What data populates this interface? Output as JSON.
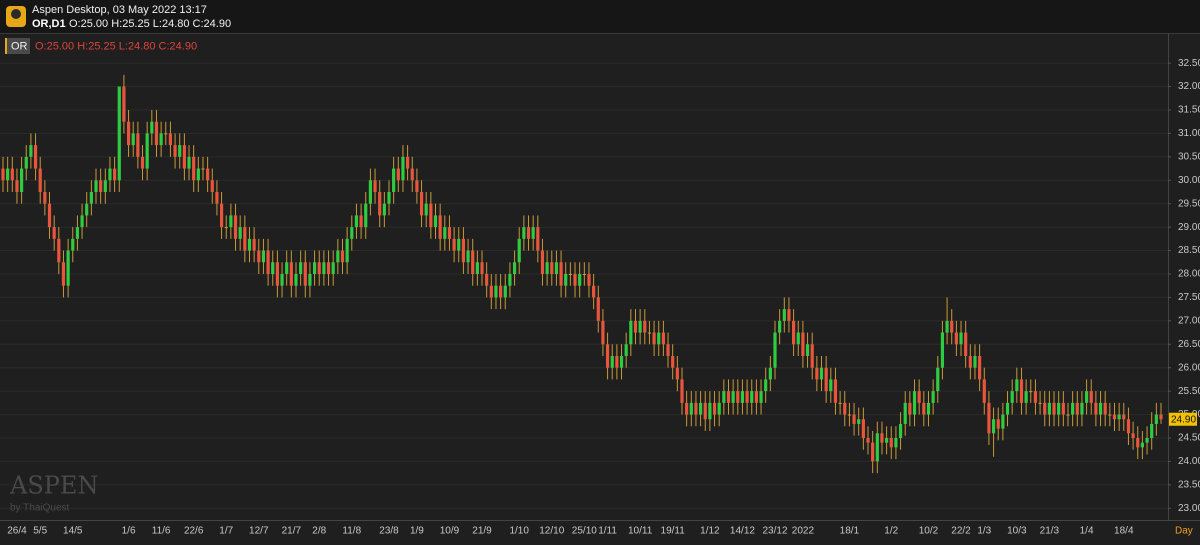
{
  "header": {
    "title": "Aspen Desktop, 03 May 2022 13:17",
    "symbol": "OR,D1",
    "ohlc": "O:25.00 H:25.25 L:24.80 C:24.90"
  },
  "legend": {
    "symbol": "OR",
    "ohlc": "O:25.00 H:25.25 L:24.80 C:24.90"
  },
  "watermark": {
    "brand": "ASPEN",
    "vendor": "by ThaiQuest"
  },
  "chart_data": {
    "type": "candlestick",
    "x_label": "Day",
    "up_color": "#2ecc40",
    "down_color": "#e8553c",
    "wick_color": "#c89a3a",
    "grid": true,
    "ylim": [
      22.75,
      33.1
    ],
    "yticks": [
      {
        "value": 23,
        "label": "23.00"
      },
      {
        "value": 23.5,
        "label": "23.50"
      },
      {
        "value": 24,
        "label": "24.00"
      },
      {
        "value": 24.5,
        "label": "24.50"
      },
      {
        "value": 25,
        "label": "25.00"
      },
      {
        "value": 25.5,
        "label": "25.50"
      },
      {
        "value": 26,
        "label": "26.00"
      },
      {
        "value": 26.5,
        "label": "26.50"
      },
      {
        "value": 27,
        "label": "27.00"
      },
      {
        "value": 27.5,
        "label": "27.50"
      },
      {
        "value": 28,
        "label": "28.00"
      },
      {
        "value": 28.5,
        "label": "28.50"
      },
      {
        "value": 29,
        "label": "29.00"
      },
      {
        "value": 29.5,
        "label": "29.50"
      },
      {
        "value": 30,
        "label": "30.00"
      },
      {
        "value": 30.5,
        "label": "30.50"
      },
      {
        "value": 31,
        "label": "31.00"
      },
      {
        "value": 31.5,
        "label": "31.50"
      },
      {
        "value": 32,
        "label": "32.00"
      },
      {
        "value": 32.5,
        "label": "32.50"
      }
    ],
    "last_price": {
      "value": 24.9,
      "label": "24.90"
    },
    "categories": [
      null,
      null,
      null,
      "26/4",
      null,
      null,
      null,
      null,
      "5/5",
      null,
      null,
      null,
      null,
      null,
      null,
      "14/5",
      null,
      null,
      null,
      null,
      null,
      null,
      null,
      null,
      null,
      null,
      null,
      "1/6",
      null,
      null,
      null,
      null,
      null,
      null,
      "11/6",
      null,
      null,
      null,
      null,
      null,
      null,
      "22/6",
      null,
      null,
      null,
      null,
      null,
      null,
      "1/7",
      null,
      null,
      null,
      null,
      null,
      null,
      "12/7",
      null,
      null,
      null,
      null,
      null,
      null,
      "21/7",
      null,
      null,
      null,
      null,
      null,
      "2/8",
      null,
      null,
      null,
      null,
      null,
      null,
      "11/8",
      null,
      null,
      null,
      null,
      null,
      null,
      null,
      "23/8",
      null,
      null,
      null,
      null,
      null,
      "1/9",
      null,
      null,
      null,
      null,
      null,
      null,
      "10/9",
      null,
      null,
      null,
      null,
      null,
      null,
      "21/9",
      null,
      null,
      null,
      null,
      null,
      null,
      null,
      "1/10",
      null,
      null,
      null,
      null,
      null,
      null,
      "12/10",
      null,
      null,
      null,
      null,
      null,
      null,
      "25/10",
      null,
      null,
      null,
      null,
      "1/11",
      null,
      null,
      null,
      null,
      null,
      null,
      "10/11",
      null,
      null,
      null,
      null,
      null,
      null,
      "19/11",
      null,
      null,
      null,
      null,
      null,
      null,
      null,
      "1/12",
      null,
      null,
      null,
      null,
      null,
      null,
      "14/12",
      null,
      null,
      null,
      null,
      null,
      null,
      "23/12",
      null,
      null,
      null,
      null,
      null,
      "2022",
      null,
      null,
      null,
      null,
      null,
      null,
      null,
      null,
      null,
      "18/1",
      null,
      null,
      null,
      null,
      null,
      null,
      null,
      null,
      "1/2",
      null,
      null,
      null,
      null,
      null,
      null,
      null,
      "10/2",
      null,
      null,
      null,
      null,
      null,
      null,
      "22/2",
      null,
      null,
      null,
      null,
      "1/3",
      null,
      null,
      null,
      null,
      null,
      null,
      "10/3",
      null,
      null,
      null,
      null,
      null,
      null,
      "21/3",
      null,
      null,
      null,
      null,
      null,
      null,
      null,
      "1/4",
      null,
      null,
      null,
      null,
      null,
      null,
      null,
      "18/4",
      null,
      null,
      null,
      null,
      null,
      null,
      null,
      null
    ],
    "open": [
      30.25,
      30.0,
      30.25,
      30.0,
      29.75,
      30.25,
      30.5,
      30.75,
      30.25,
      29.75,
      29.5,
      29.0,
      28.75,
      28.25,
      27.75,
      28.5,
      28.75,
      29.0,
      29.25,
      29.5,
      29.75,
      30.0,
      29.75,
      30.0,
      30.25,
      30.0,
      32.0,
      31.25,
      30.75,
      31.0,
      30.5,
      30.25,
      31.0,
      31.25,
      30.75,
      31.0,
      31.0,
      30.75,
      30.5,
      30.75,
      30.25,
      30.5,
      30.0,
      30.25,
      30.25,
      30.0,
      29.75,
      29.5,
      29.0,
      29.0,
      29.25,
      28.75,
      29.0,
      28.5,
      28.75,
      28.5,
      28.25,
      28.5,
      28.0,
      28.25,
      27.75,
      28.0,
      28.25,
      27.75,
      28.0,
      28.25,
      27.75,
      28.0,
      28.25,
      28.0,
      28.25,
      28.0,
      28.25,
      28.5,
      28.25,
      28.75,
      29.0,
      29.25,
      29.0,
      29.5,
      30.0,
      29.75,
      29.25,
      29.5,
      29.75,
      30.25,
      30.0,
      30.5,
      30.25,
      30.0,
      29.75,
      29.25,
      29.5,
      29.0,
      29.25,
      28.75,
      29.0,
      28.75,
      28.5,
      28.75,
      28.25,
      28.5,
      28.0,
      28.25,
      28.0,
      27.75,
      27.5,
      27.75,
      27.5,
      27.75,
      28.0,
      28.25,
      28.75,
      29.0,
      28.75,
      29.0,
      28.5,
      28.0,
      28.25,
      28.0,
      28.25,
      27.75,
      28.0,
      28.0,
      27.75,
      28.0,
      28.0,
      27.75,
      27.5,
      27.0,
      26.5,
      26.0,
      26.25,
      26.0,
      26.25,
      26.5,
      27.0,
      26.75,
      27.0,
      26.75,
      26.75,
      26.5,
      26.75,
      26.5,
      26.25,
      26.0,
      25.75,
      25.25,
      25.0,
      25.25,
      25.0,
      25.25,
      24.9,
      25.25,
      25.0,
      25.25,
      25.5,
      25.25,
      25.5,
      25.25,
      25.5,
      25.25,
      25.5,
      25.25,
      25.5,
      25.75,
      26.0,
      26.75,
      27.0,
      27.25,
      27.0,
      26.5,
      26.75,
      26.25,
      26.5,
      26.0,
      25.75,
      26.0,
      25.5,
      25.75,
      25.25,
      25.25,
      25.0,
      25.0,
      24.8,
      24.9,
      24.5,
      24.4,
      24.0,
      24.6,
      24.4,
      24.5,
      24.3,
      24.5,
      24.8,
      25.25,
      25.0,
      25.5,
      25.25,
      25.0,
      25.25,
      25.5,
      26.0,
      26.75,
      27.0,
      26.75,
      26.5,
      26.75,
      26.25,
      26.0,
      26.25,
      25.75,
      25.25,
      24.6,
      24.9,
      24.7,
      25.0,
      25.25,
      25.5,
      25.75,
      25.25,
      25.5,
      25.5,
      25.25,
      25.25,
      25.0,
      25.25,
      25.0,
      25.25,
      25.0,
      25.0,
      25.25,
      25.0,
      25.25,
      25.5,
      25.25,
      25.0,
      25.25,
      25.0,
      25.0,
      24.9,
      25.0,
      24.9,
      24.6,
      24.5,
      24.3,
      24.4,
      24.5,
      24.8,
      25.0
    ],
    "high": [
      30.5,
      30.5,
      30.5,
      30.25,
      30.5,
      30.75,
      31.0,
      31.0,
      30.5,
      30.0,
      29.75,
      29.25,
      29.0,
      28.5,
      28.75,
      29.0,
      29.25,
      29.5,
      29.75,
      30.0,
      30.25,
      30.25,
      30.25,
      30.5,
      30.5,
      32.0,
      32.25,
      31.5,
      31.25,
      31.25,
      30.75,
      31.25,
      31.5,
      31.5,
      31.25,
      31.25,
      31.25,
      31.0,
      31.0,
      31.0,
      30.75,
      30.75,
      30.5,
      30.5,
      30.5,
      30.25,
      30.0,
      29.75,
      29.25,
      29.5,
      29.5,
      29.25,
      29.25,
      29.0,
      29.0,
      28.75,
      28.75,
      28.75,
      28.5,
      28.5,
      28.25,
      28.5,
      28.5,
      28.25,
      28.5,
      28.5,
      28.25,
      28.5,
      28.5,
      28.5,
      28.5,
      28.5,
      28.75,
      28.75,
      29.0,
      29.25,
      29.5,
      29.5,
      29.75,
      30.25,
      30.25,
      30.0,
      29.75,
      30.0,
      30.5,
      30.5,
      30.75,
      30.75,
      30.5,
      30.25,
      30.0,
      29.75,
      29.75,
      29.5,
      29.5,
      29.25,
      29.25,
      29.0,
      29.0,
      29.0,
      28.75,
      28.75,
      28.5,
      28.5,
      28.25,
      28.0,
      28.0,
      28.0,
      28.0,
      28.25,
      28.5,
      29.0,
      29.25,
      29.25,
      29.25,
      29.25,
      28.75,
      28.5,
      28.5,
      28.5,
      28.5,
      28.25,
      28.25,
      28.25,
      28.25,
      28.25,
      28.25,
      28.0,
      27.75,
      27.25,
      26.75,
      26.5,
      26.5,
      26.5,
      26.75,
      27.25,
      27.25,
      27.25,
      27.25,
      27.0,
      27.0,
      27.0,
      27.0,
      26.75,
      26.5,
      26.25,
      26.0,
      25.5,
      25.5,
      25.5,
      25.5,
      25.5,
      25.5,
      25.5,
      25.5,
      25.75,
      25.75,
      25.75,
      25.75,
      25.75,
      25.75,
      25.75,
      25.75,
      25.75,
      26.0,
      26.25,
      27.0,
      27.25,
      27.5,
      27.5,
      27.25,
      27.0,
      27.0,
      26.75,
      26.75,
      26.25,
      26.25,
      26.25,
      26.0,
      26.0,
      25.5,
      25.5,
      25.25,
      25.25,
      25.15,
      25.15,
      24.75,
      24.65,
      24.85,
      24.85,
      24.75,
      24.75,
      24.75,
      25.05,
      25.5,
      25.5,
      25.75,
      25.75,
      25.5,
      25.5,
      25.75,
      26.25,
      27.0,
      27.5,
      27.25,
      27.0,
      27.0,
      27.0,
      26.5,
      26.5,
      26.5,
      26.0,
      25.5,
      25.15,
      25.15,
      25.25,
      25.5,
      25.75,
      26.0,
      26.0,
      25.75,
      25.75,
      25.75,
      25.5,
      25.5,
      25.5,
      25.5,
      25.5,
      25.5,
      25.25,
      25.5,
      25.5,
      25.5,
      25.75,
      25.75,
      25.5,
      25.5,
      25.5,
      25.25,
      25.25,
      25.25,
      25.25,
      25.15,
      24.85,
      24.75,
      24.65,
      24.75,
      25.05,
      25.25,
      25.25
    ],
    "low": [
      29.75,
      29.75,
      29.75,
      29.5,
      29.5,
      30.0,
      30.25,
      30.0,
      29.5,
      29.25,
      28.75,
      28.5,
      28.0,
      27.5,
      27.5,
      28.25,
      28.5,
      28.75,
      29.0,
      29.25,
      29.5,
      29.5,
      29.5,
      29.75,
      29.75,
      29.75,
      31.0,
      30.5,
      30.5,
      30.25,
      30.0,
      30.0,
      30.75,
      30.5,
      30.5,
      30.75,
      30.5,
      30.25,
      30.25,
      30.0,
      30.0,
      29.75,
      29.75,
      30.0,
      29.75,
      29.5,
      29.25,
      28.75,
      28.75,
      28.75,
      28.5,
      28.5,
      28.25,
      28.25,
      28.25,
      28.0,
      28.0,
      27.75,
      27.75,
      27.5,
      27.5,
      27.75,
      27.5,
      27.5,
      27.75,
      27.5,
      27.5,
      27.75,
      27.75,
      27.75,
      27.75,
      27.75,
      28.0,
      28.0,
      28.0,
      28.5,
      28.75,
      28.75,
      28.75,
      29.25,
      29.5,
      29.0,
      29.0,
      29.25,
      29.5,
      29.75,
      29.75,
      30.0,
      29.75,
      29.5,
      29.0,
      29.0,
      28.75,
      28.75,
      28.5,
      28.5,
      28.5,
      28.25,
      28.25,
      28.0,
      28.0,
      27.75,
      27.75,
      27.75,
      27.5,
      27.25,
      27.25,
      27.25,
      27.25,
      27.5,
      27.75,
      28.0,
      28.5,
      28.5,
      28.5,
      28.25,
      27.75,
      27.75,
      27.75,
      27.75,
      27.5,
      27.5,
      27.75,
      27.5,
      27.5,
      27.75,
      27.5,
      27.25,
      26.75,
      26.25,
      25.75,
      25.75,
      25.75,
      25.75,
      26.0,
      26.25,
      26.5,
      26.5,
      26.5,
      26.5,
      26.25,
      26.25,
      26.25,
      26.0,
      25.75,
      25.5,
      25.0,
      24.75,
      24.75,
      24.75,
      24.75,
      24.65,
      24.65,
      24.75,
      24.75,
      25.0,
      25.0,
      25.0,
      25.0,
      25.0,
      25.0,
      25.0,
      25.0,
      25.0,
      25.25,
      25.5,
      25.75,
      26.5,
      26.75,
      26.75,
      26.25,
      26.25,
      26.0,
      26.0,
      25.75,
      25.5,
      25.5,
      25.25,
      25.25,
      25.0,
      25.0,
      24.75,
      24.75,
      24.55,
      24.55,
      24.25,
      24.15,
      23.75,
      23.75,
      24.15,
      24.15,
      24.05,
      24.05,
      24.25,
      24.55,
      24.75,
      24.75,
      25.0,
      24.75,
      24.75,
      25.0,
      25.25,
      25.75,
      26.5,
      26.5,
      26.25,
      26.25,
      26.0,
      25.75,
      25.75,
      25.5,
      25.0,
      24.35,
      24.1,
      24.45,
      24.45,
      24.75,
      25.0,
      25.25,
      25.0,
      25.0,
      25.25,
      25.0,
      25.0,
      24.75,
      24.75,
      24.75,
      24.75,
      24.75,
      24.75,
      24.75,
      24.75,
      24.75,
      25.0,
      25.0,
      24.75,
      24.75,
      24.75,
      24.75,
      24.65,
      24.65,
      24.65,
      24.35,
      24.25,
      24.05,
      24.05,
      24.15,
      24.25,
      24.55,
      24.8
    ],
    "close": [
      30.0,
      30.25,
      30.0,
      29.75,
      30.25,
      30.5,
      30.75,
      30.25,
      29.75,
      29.5,
      29.0,
      28.75,
      28.25,
      27.75,
      28.5,
      28.75,
      29.0,
      29.25,
      29.5,
      29.75,
      30.0,
      29.75,
      30.0,
      30.25,
      30.0,
      32.0,
      31.25,
      30.75,
      31.0,
      30.5,
      30.25,
      31.0,
      31.25,
      30.75,
      31.0,
      31.0,
      30.75,
      30.5,
      30.75,
      30.25,
      30.5,
      30.0,
      30.25,
      30.25,
      30.0,
      29.75,
      29.5,
      29.0,
      29.0,
      29.25,
      28.75,
      29.0,
      28.5,
      28.75,
      28.5,
      28.25,
      28.5,
      28.0,
      28.25,
      27.75,
      28.0,
      28.25,
      27.75,
      28.0,
      28.25,
      27.75,
      28.0,
      28.25,
      28.0,
      28.25,
      28.0,
      28.25,
      28.5,
      28.25,
      28.75,
      29.0,
      29.25,
      29.0,
      29.5,
      30.0,
      29.75,
      29.25,
      29.5,
      29.75,
      30.25,
      30.0,
      30.5,
      30.25,
      30.0,
      29.75,
      29.25,
      29.5,
      29.0,
      29.25,
      28.75,
      29.0,
      28.75,
      28.5,
      28.75,
      28.25,
      28.5,
      28.0,
      28.25,
      28.0,
      27.75,
      27.5,
      27.75,
      27.5,
      27.75,
      28.0,
      28.25,
      28.75,
      29.0,
      28.75,
      29.0,
      28.5,
      28.0,
      28.25,
      28.0,
      28.25,
      27.75,
      28.0,
      28.0,
      27.75,
      28.0,
      28.0,
      27.75,
      27.5,
      27.0,
      26.5,
      26.0,
      26.25,
      26.0,
      26.25,
      26.5,
      27.0,
      26.75,
      27.0,
      26.75,
      26.75,
      26.5,
      26.75,
      26.5,
      26.25,
      26.0,
      25.75,
      25.25,
      25.0,
      25.25,
      25.0,
      25.25,
      24.9,
      25.25,
      25.0,
      25.25,
      25.5,
      25.25,
      25.5,
      25.25,
      25.5,
      25.25,
      25.5,
      25.25,
      25.5,
      25.75,
      26.0,
      26.75,
      27.0,
      27.25,
      27.0,
      26.5,
      26.75,
      26.25,
      26.5,
      26.0,
      25.75,
      26.0,
      25.5,
      25.75,
      25.25,
      25.25,
      25.0,
      25.0,
      24.8,
      24.9,
      24.5,
      24.4,
      24.0,
      24.6,
      24.4,
      24.5,
      24.3,
      24.5,
      24.8,
      25.25,
      25.0,
      25.5,
      25.25,
      25.0,
      25.25,
      25.5,
      26.0,
      26.75,
      27.0,
      26.75,
      26.5,
      26.75,
      26.25,
      26.0,
      26.25,
      25.75,
      25.25,
      24.6,
      24.9,
      24.7,
      25.0,
      25.25,
      25.5,
      25.75,
      25.25,
      25.5,
      25.5,
      25.25,
      25.25,
      25.0,
      25.25,
      25.0,
      25.25,
      25.0,
      25.0,
      25.25,
      25.0,
      25.25,
      25.5,
      25.25,
      25.0,
      25.25,
      25.0,
      25.0,
      24.9,
      25.0,
      24.9,
      24.6,
      24.5,
      24.3,
      24.4,
      24.5,
      24.8,
      25.0,
      24.9
    ]
  }
}
